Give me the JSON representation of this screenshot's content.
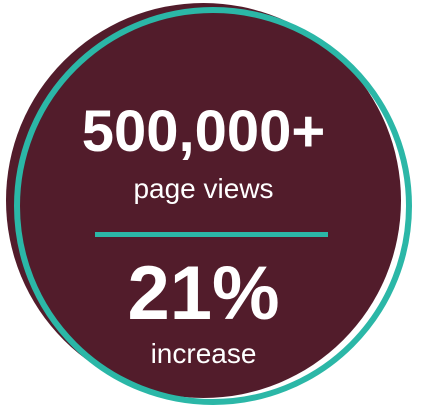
{
  "stat_card": {
    "primary_value": "500,000+",
    "primary_caption": "page views",
    "secondary_value": "21%",
    "secondary_caption": "increase"
  },
  "colors": {
    "disc": "#521c2b",
    "accent": "#2bb7a7",
    "text": "#ffffff"
  }
}
